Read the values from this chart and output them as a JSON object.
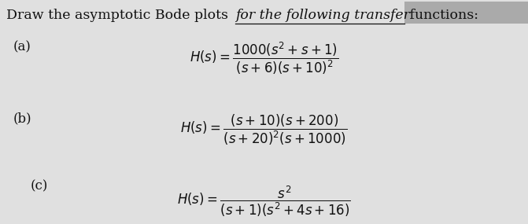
{
  "background_color": "#e0e0e0",
  "text_color": "#111111",
  "title_part1": "Draw the asymptotic Bode plots ",
  "title_part2": "for the following transfer",
  "title_part3": " functions:",
  "label_a": "(a)",
  "label_b": "(b)",
  "label_c": "(c)",
  "formula_a": "$H(s) = \\dfrac{1000(s^{2} + s + 1)}{(s + 6)(s + 10)^{2}}$",
  "formula_b": "$H(s) = \\dfrac{(s + 10)(s + 200)}{(s + 20)^{2}(s + 1000)}$",
  "formula_c": "$H(s) = \\dfrac{s^{2}}{(s + 1)(s^{2} + 4s + 16)}$",
  "fontsize_title": 12.5,
  "fontsize_label": 12,
  "fontsize_formula": 12,
  "highlight_box_color": "#aaaaaa",
  "fig_width": 6.71,
  "fig_height": 2.85,
  "dpi": 100
}
